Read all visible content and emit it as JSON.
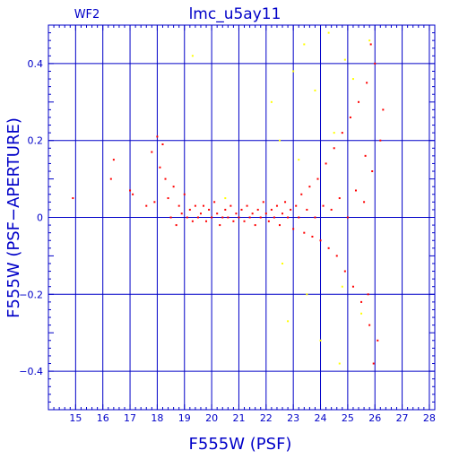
{
  "chart_data": {
    "type": "scatter",
    "title": "lmc_u5ay11",
    "subtitle": "WF2",
    "xlabel": "F555W (PSF)",
    "ylabel": "F555W (PSF−APERTURE)",
    "xlim": [
      14,
      28.2
    ],
    "ylim": [
      -0.5,
      0.5
    ],
    "grid": true,
    "x_major_ticks": [
      15,
      16,
      17,
      18,
      19,
      20,
      21,
      22,
      23,
      24,
      25,
      26,
      27,
      28
    ],
    "y_major_ticks": [
      -0.4,
      -0.2,
      0,
      0.2,
      0.4
    ],
    "x_tick_labels": [
      "15",
      "16",
      "17",
      "18",
      "19",
      "20",
      "21",
      "22",
      "23",
      "24",
      "25",
      "26",
      "27",
      "28"
    ],
    "y_tick_labels": [
      "−0.4",
      "−0.2",
      "0",
      "0.2",
      "0.4"
    ],
    "colors": {
      "axes": "#0000c8",
      "title": "#0000c8",
      "primary_points": "#ff0000",
      "secondary_points": "#ffff00"
    },
    "series": [
      {
        "color": "#ff0000",
        "points": [
          [
            14.9,
            0.05
          ],
          [
            16.3,
            0.1
          ],
          [
            16.4,
            0.15
          ],
          [
            17.0,
            0.07
          ],
          [
            17.1,
            0.06
          ],
          [
            17.6,
            0.03
          ],
          [
            17.8,
            0.17
          ],
          [
            17.9,
            0.04
          ],
          [
            18.0,
            0.21
          ],
          [
            18.1,
            0.13
          ],
          [
            18.2,
            0.19
          ],
          [
            18.3,
            0.1
          ],
          [
            18.4,
            0.05
          ],
          [
            18.5,
            0.0
          ],
          [
            18.6,
            0.08
          ],
          [
            18.7,
            -0.02
          ],
          [
            18.8,
            0.03
          ],
          [
            18.9,
            0.01
          ],
          [
            19.0,
            0.06
          ],
          [
            19.1,
            0.0
          ],
          [
            19.2,
            0.02
          ],
          [
            19.3,
            -0.01
          ],
          [
            19.4,
            0.03
          ],
          [
            19.5,
            0.0
          ],
          [
            19.6,
            0.01
          ],
          [
            19.7,
            0.03
          ],
          [
            19.8,
            -0.01
          ],
          [
            19.9,
            0.02
          ],
          [
            20.0,
            0.0
          ],
          [
            20.1,
            0.04
          ],
          [
            20.2,
            0.01
          ],
          [
            20.3,
            -0.02
          ],
          [
            20.4,
            0.0
          ],
          [
            20.5,
            0.02
          ],
          [
            20.6,
            0.0
          ],
          [
            20.7,
            0.03
          ],
          [
            20.8,
            -0.01
          ],
          [
            20.9,
            0.01
          ],
          [
            21.0,
            0.0
          ],
          [
            21.1,
            0.02
          ],
          [
            21.2,
            -0.01
          ],
          [
            21.3,
            0.03
          ],
          [
            21.4,
            0.0
          ],
          [
            21.5,
            0.01
          ],
          [
            21.6,
            -0.02
          ],
          [
            21.7,
            0.02
          ],
          [
            21.8,
            0.0
          ],
          [
            21.9,
            0.04
          ],
          [
            22.0,
            0.01
          ],
          [
            22.1,
            -0.01
          ],
          [
            22.2,
            0.02
          ],
          [
            22.3,
            0.0
          ],
          [
            22.4,
            0.03
          ],
          [
            22.5,
            -0.02
          ],
          [
            22.6,
            0.01
          ],
          [
            22.7,
            0.04
          ],
          [
            22.8,
            0.0
          ],
          [
            22.9,
            0.02
          ],
          [
            23.0,
            -0.03
          ],
          [
            23.1,
            0.03
          ],
          [
            23.2,
            0.0
          ],
          [
            23.3,
            0.06
          ],
          [
            23.4,
            -0.04
          ],
          [
            23.5,
            0.02
          ],
          [
            23.6,
            0.08
          ],
          [
            23.7,
            -0.05
          ],
          [
            23.8,
            0.0
          ],
          [
            23.9,
            0.1
          ],
          [
            24.0,
            -0.06
          ],
          [
            24.1,
            0.03
          ],
          [
            24.2,
            0.14
          ],
          [
            24.3,
            -0.08
          ],
          [
            24.4,
            0.02
          ],
          [
            24.5,
            0.18
          ],
          [
            24.6,
            -0.1
          ],
          [
            24.7,
            0.05
          ],
          [
            24.8,
            0.22
          ],
          [
            24.9,
            -0.14
          ],
          [
            25.0,
            0.0
          ],
          [
            25.1,
            0.26
          ],
          [
            25.2,
            -0.18
          ],
          [
            25.3,
            0.07
          ],
          [
            25.4,
            0.3
          ],
          [
            25.5,
            -0.22
          ],
          [
            25.6,
            0.04
          ],
          [
            25.7,
            0.35
          ],
          [
            25.8,
            -0.28
          ],
          [
            25.9,
            0.12
          ],
          [
            26.0,
            0.4
          ],
          [
            26.1,
            -0.32
          ],
          [
            26.2,
            0.2
          ],
          [
            26.3,
            0.28
          ],
          [
            25.95,
            -0.38
          ],
          [
            25.85,
            0.45
          ],
          [
            25.75,
            -0.2
          ],
          [
            25.65,
            0.16
          ]
        ]
      },
      {
        "color": "#ffff00",
        "points": [
          [
            19.3,
            0.42
          ],
          [
            20.5,
            0.05
          ],
          [
            22.2,
            0.3
          ],
          [
            22.5,
            0.2
          ],
          [
            22.8,
            -0.27
          ],
          [
            23.0,
            0.38
          ],
          [
            23.4,
            0.45
          ],
          [
            23.8,
            0.33
          ],
          [
            24.0,
            -0.32
          ],
          [
            24.3,
            0.48
          ],
          [
            24.5,
            0.22
          ],
          [
            24.7,
            -0.38
          ],
          [
            24.9,
            0.41
          ],
          [
            25.2,
            0.36
          ],
          [
            25.5,
            -0.25
          ],
          [
            25.8,
            0.46
          ],
          [
            22.6,
            -0.12
          ],
          [
            23.5,
            -0.2
          ],
          [
            24.8,
            -0.18
          ],
          [
            23.2,
            0.15
          ]
        ]
      }
    ]
  }
}
